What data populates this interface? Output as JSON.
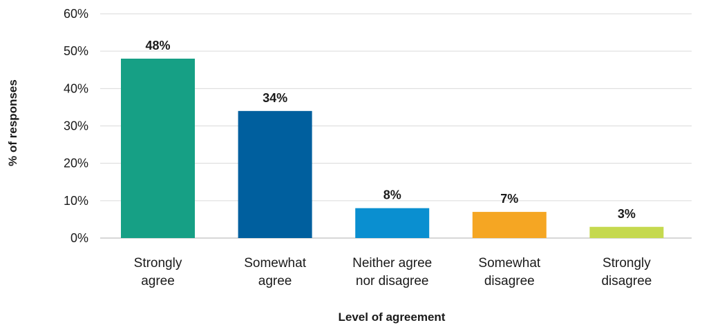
{
  "chart_data": {
    "type": "bar",
    "categories": [
      [
        "Strongly",
        "agree"
      ],
      [
        "Somewhat",
        "agree"
      ],
      [
        "Neither agree",
        "nor disagree"
      ],
      [
        "Somewhat",
        "disagree"
      ],
      [
        "Strongly",
        "disagree"
      ]
    ],
    "values": [
      48,
      34,
      8,
      7,
      3
    ],
    "data_labels": [
      "48%",
      "34%",
      "8%",
      "7%",
      "3%"
    ],
    "colors": [
      "#16a085",
      "#005f9e",
      "#0a8fd0",
      "#f5a623",
      "#c5d94f"
    ],
    "yticks": [
      0,
      10,
      20,
      30,
      40,
      50,
      60
    ],
    "ytick_labels": [
      "0%",
      "10%",
      "20%",
      "30%",
      "40%",
      "50%",
      "60%"
    ],
    "ylim": [
      0,
      60
    ],
    "xlabel": "Level of agreement",
    "ylabel": "% of responses",
    "grid": true,
    "legend": "none"
  }
}
